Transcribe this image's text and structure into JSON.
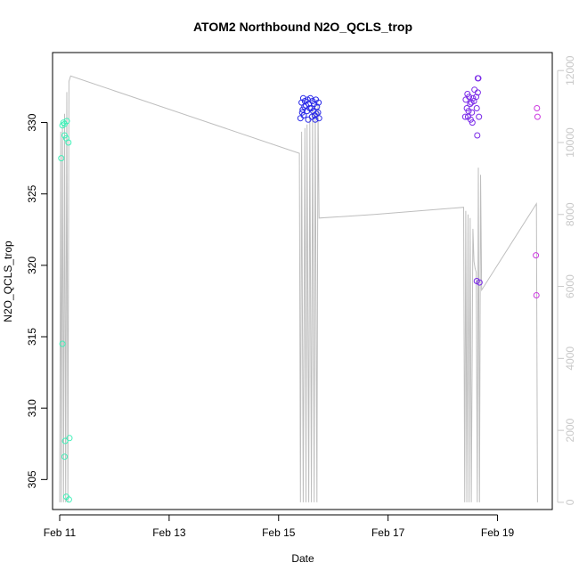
{
  "chart_data": {
    "type": "scatter",
    "title": "ATOM2 Northbound N2O_QCLS_trop",
    "xlabel": "Date",
    "ylabel": "N2O_QCLS_trop",
    "x_ticks": [
      "Feb 11",
      "Feb 13",
      "Feb 15",
      "Feb 17",
      "Feb 19"
    ],
    "y_ticks": [
      305,
      310,
      315,
      320,
      325,
      330
    ],
    "y_right_ticks": [
      0,
      2000,
      4000,
      6000,
      8000,
      10000,
      12000
    ],
    "xlim_days": [
      10.87,
      20.0
    ],
    "ylim": [
      302.9,
      334.9
    ],
    "y_right_lim": [
      -200,
      12500
    ],
    "grid": false,
    "colors": {
      "flight1": "#40f0b8",
      "flight2": "#2a2ae8",
      "flight3": "#7a2ae8",
      "flight4": "#cc3ae0",
      "altitude": "#bebebe",
      "axis": "#000000",
      "right_axis": "#c8c8c8"
    },
    "series": [
      {
        "color_key": "flight1",
        "points": [
          [
            11.05,
            329.8
          ],
          [
            11.07,
            330.0
          ],
          [
            11.09,
            329.9
          ],
          [
            11.13,
            330.1
          ],
          [
            11.03,
            327.5
          ],
          [
            11.09,
            329.1
          ],
          [
            11.12,
            328.9
          ],
          [
            11.16,
            328.6
          ],
          [
            11.05,
            314.5
          ],
          [
            11.1,
            307.7
          ],
          [
            11.18,
            307.9
          ],
          [
            11.09,
            306.6
          ],
          [
            11.12,
            303.8
          ],
          [
            11.17,
            303.6
          ]
        ]
      },
      {
        "color_key": "flight2",
        "points": [
          [
            15.42,
            331.4
          ],
          [
            15.45,
            331.7
          ],
          [
            15.48,
            331.5
          ],
          [
            15.5,
            331.2
          ],
          [
            15.53,
            331.6
          ],
          [
            15.55,
            331.3
          ],
          [
            15.58,
            331.7
          ],
          [
            15.6,
            331.0
          ],
          [
            15.62,
            331.5
          ],
          [
            15.65,
            331.3
          ],
          [
            15.68,
            331.6
          ],
          [
            15.7,
            331.1
          ],
          [
            15.73,
            331.4
          ],
          [
            15.44,
            330.9
          ],
          [
            15.47,
            331.1
          ],
          [
            15.52,
            330.8
          ],
          [
            15.57,
            331.0
          ],
          [
            15.63,
            330.8
          ],
          [
            15.66,
            330.5
          ],
          [
            15.69,
            330.6
          ],
          [
            15.72,
            330.7
          ],
          [
            15.4,
            330.3
          ],
          [
            15.46,
            330.5
          ],
          [
            15.54,
            330.2
          ],
          [
            15.61,
            330.4
          ],
          [
            15.67,
            330.2
          ],
          [
            15.74,
            330.3
          ],
          [
            15.43,
            330.7
          ]
        ]
      },
      {
        "color_key": "flight3",
        "points": [
          [
            18.42,
            331.6
          ],
          [
            18.45,
            332.0
          ],
          [
            18.48,
            331.8
          ],
          [
            18.52,
            331.4
          ],
          [
            18.55,
            331.7
          ],
          [
            18.58,
            332.3
          ],
          [
            18.61,
            331.8
          ],
          [
            18.64,
            332.1
          ],
          [
            18.44,
            331.0
          ],
          [
            18.47,
            330.8
          ],
          [
            18.5,
            331.3
          ],
          [
            18.53,
            330.7
          ],
          [
            18.57,
            331.5
          ],
          [
            18.62,
            331.0
          ],
          [
            18.41,
            330.4
          ],
          [
            18.46,
            330.4
          ],
          [
            18.51,
            330.2
          ],
          [
            18.54,
            330.0
          ],
          [
            18.66,
            330.4
          ],
          [
            18.63,
            329.1
          ],
          [
            18.65,
            333.1
          ],
          [
            18.64,
            333.1
          ],
          [
            18.62,
            318.9
          ],
          [
            18.67,
            318.8
          ]
        ]
      },
      {
        "color_key": "flight4",
        "points": [
          [
            19.72,
            331.0
          ],
          [
            19.73,
            330.4
          ],
          [
            19.7,
            320.7
          ],
          [
            19.71,
            317.9
          ]
        ]
      }
    ],
    "altitude_trace": [
      [
        11.0,
        0
      ],
      [
        11.02,
        10300
      ],
      [
        11.03,
        0
      ],
      [
        11.05,
        10500
      ],
      [
        11.07,
        0
      ],
      [
        11.09,
        10800
      ],
      [
        11.11,
        0
      ],
      [
        11.13,
        11400
      ],
      [
        11.15,
        0
      ],
      [
        11.17,
        11700
      ],
      [
        11.2,
        11850
      ],
      [
        15.38,
        9700
      ],
      [
        15.4,
        0
      ],
      [
        15.42,
        10300
      ],
      [
        15.45,
        0
      ],
      [
        15.48,
        10400
      ],
      [
        15.5,
        0
      ],
      [
        15.52,
        10500
      ],
      [
        15.55,
        0
      ],
      [
        15.57,
        10700
      ],
      [
        15.6,
        0
      ],
      [
        15.62,
        10900
      ],
      [
        15.65,
        0
      ],
      [
        15.67,
        11000
      ],
      [
        15.7,
        0
      ],
      [
        15.72,
        11100
      ],
      [
        15.74,
        7900
      ],
      [
        16.75,
        8000
      ],
      [
        18.38,
        8200
      ],
      [
        18.4,
        0
      ],
      [
        18.42,
        8100
      ],
      [
        18.44,
        0
      ],
      [
        18.46,
        8000
      ],
      [
        18.48,
        0
      ],
      [
        18.5,
        7900
      ],
      [
        18.52,
        0
      ],
      [
        18.55,
        7600
      ],
      [
        18.57,
        6700
      ],
      [
        18.59,
        6500
      ],
      [
        18.61,
        6400
      ],
      [
        18.63,
        0
      ],
      [
        18.65,
        9300
      ],
      [
        18.67,
        0
      ],
      [
        18.69,
        9100
      ],
      [
        18.71,
        5900
      ],
      [
        19.71,
        8300
      ],
      [
        19.73,
        0
      ]
    ]
  }
}
